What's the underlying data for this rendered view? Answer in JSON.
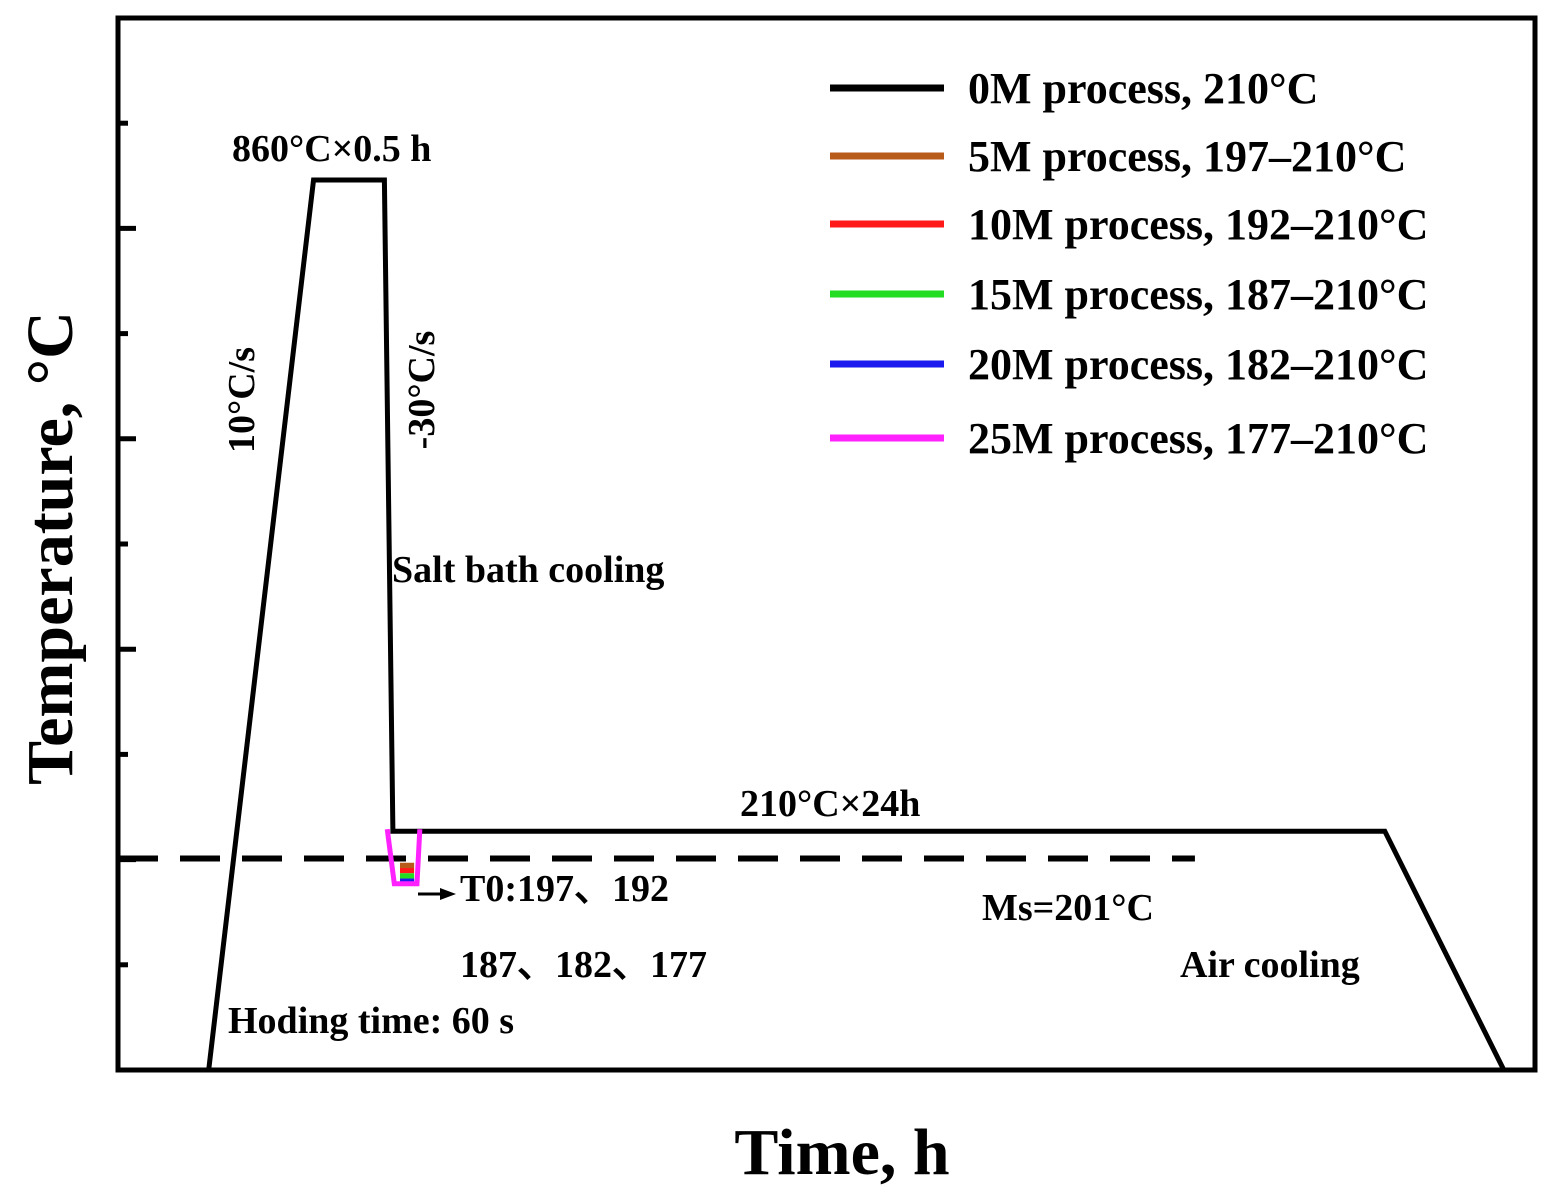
{
  "chart_data": {
    "type": "line",
    "title": "",
    "xlabel": "Time, h",
    "ylabel": "Temperature, °C",
    "xlim": [
      0,
      100
    ],
    "ylim": [
      0,
      1000
    ],
    "grid": false,
    "legend_position": "top-right",
    "main_profile": {
      "name": "0M  process, 210°C",
      "color": "#000000",
      "points": [
        [
          6.4,
          0
        ],
        [
          13.8,
          846
        ],
        [
          18.8,
          846
        ],
        [
          19.4,
          227
        ],
        [
          22.0,
          227
        ],
        [
          89.4,
          227
        ],
        [
          97.8,
          0
        ]
      ]
    },
    "series": [
      {
        "name": "0M  process, 210°C",
        "color": "#000000",
        "t0": 210
      },
      {
        "name": "5M   process, 197–210°C",
        "color": "#b85a1a",
        "t0": 197
      },
      {
        "name": "10M process, 192–210°C",
        "color": "#ff1a1a",
        "t0": 192
      },
      {
        "name": "15M process, 187–210°C",
        "color": "#22dd22",
        "t0": 187
      },
      {
        "name": "20M process, 182–210°C",
        "color": "#1a1aee",
        "t0": 182
      },
      {
        "name": "25M process, 177–210°C",
        "color": "#ff22ff",
        "t0": 177
      }
    ],
    "ms_line": {
      "label": "Ms=201°C",
      "value": 201,
      "style": "dashed",
      "color": "#000000"
    },
    "annotations": {
      "austenitize": "860°C×0.5 h",
      "heating_rate": "10°C/s",
      "cooling_rate": "-30°C/s",
      "salt_bath": "Salt bath cooling",
      "hold": "210°C×24h",
      "t0_line1": "T0:197、192",
      "t0_line2": "187、182、177",
      "holding_time": "Hoding time: 60 s",
      "air_cooling": "Air cooling"
    },
    "y_ticks": [
      100,
      200,
      300,
      400,
      500,
      600,
      700,
      800,
      900
    ],
    "y_tick_labels_shown": false
  }
}
